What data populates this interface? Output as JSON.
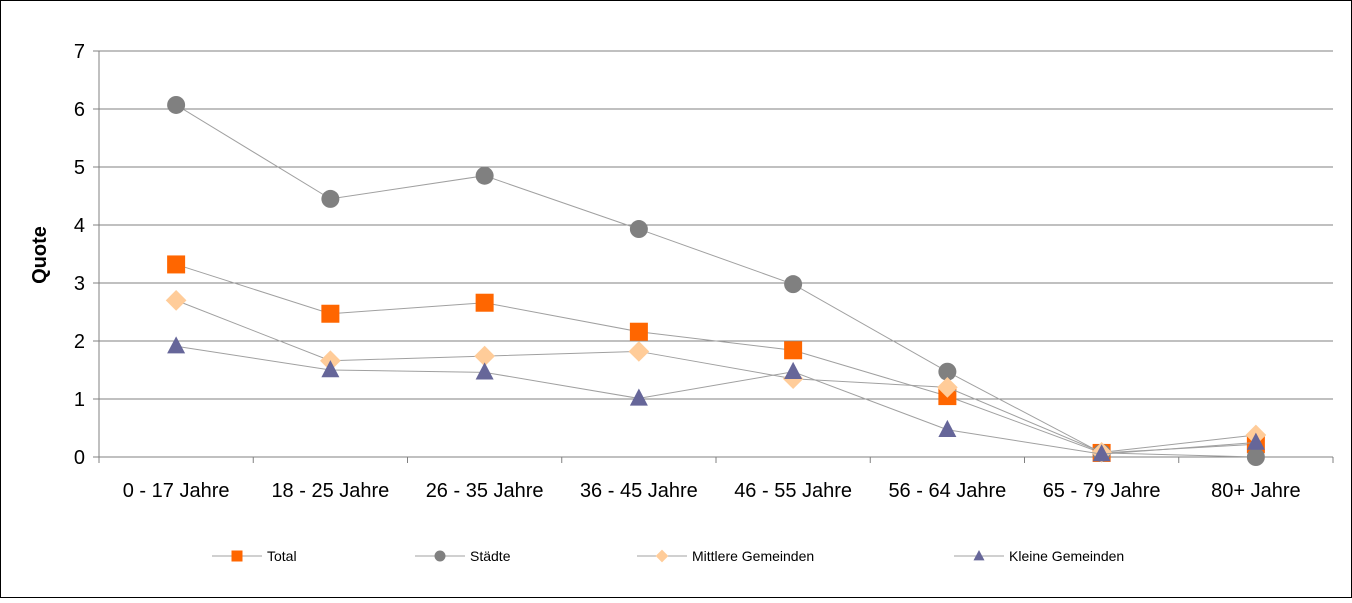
{
  "chart_data": {
    "type": "line",
    "title": "",
    "xlabel": "",
    "ylabel": "Quote",
    "ylim": [
      0,
      7
    ],
    "yticks": [
      0,
      1,
      2,
      3,
      4,
      5,
      6,
      7
    ],
    "grid": true,
    "legend_position": "bottom",
    "categories": [
      "0 - 17 Jahre",
      "18 - 25 Jahre",
      "26 - 35 Jahre",
      "36 - 45 Jahre",
      "46 - 55 Jahre",
      "56 - 64 Jahre",
      "65 - 79 Jahre",
      "80+ Jahre"
    ],
    "series": [
      {
        "name": "Total",
        "marker": "square",
        "color": "#ff6600",
        "values": [
          3.32,
          2.47,
          2.66,
          2.16,
          1.84,
          1.05,
          0.07,
          0.22
        ]
      },
      {
        "name": "Städte",
        "marker": "circle",
        "color": "#808080",
        "values": [
          6.07,
          4.45,
          4.85,
          3.93,
          2.98,
          1.47,
          0.07,
          0.0
        ]
      },
      {
        "name": "Mittlere Gemeinden",
        "marker": "diamond",
        "color": "#ffcc99",
        "values": [
          2.7,
          1.66,
          1.74,
          1.82,
          1.35,
          1.2,
          0.08,
          0.38
        ]
      },
      {
        "name": "Kleine Gemeinden",
        "marker": "triangle",
        "color": "#666699",
        "values": [
          1.91,
          1.5,
          1.46,
          1.01,
          1.47,
          0.47,
          0.05,
          0.25
        ]
      }
    ]
  }
}
